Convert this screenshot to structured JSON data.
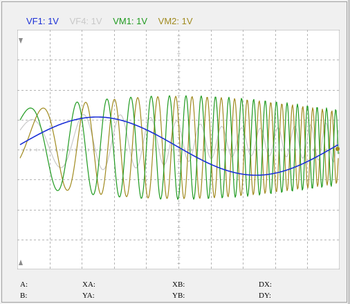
{
  "channels": [
    {
      "label": "VF1: 1V",
      "color": "#1a2fd6"
    },
    {
      "label": "VF4: 1V",
      "color": "#c8c8c8"
    },
    {
      "label": "VM1: 1V",
      "color": "#1f9a1f"
    },
    {
      "label": "VM2: 1V",
      "color": "#a08a1e"
    }
  ],
  "colors": {
    "screen_background": "#ffffff",
    "grid": "#b4b4b4",
    "trigger_marker": "#8c8c8c"
  },
  "readouts": {
    "row1": {
      "a": "A:",
      "xa": "XA:",
      "xb": "XB:",
      "dx": "DX:"
    },
    "row2": {
      "b": "B:",
      "ya": "YA:",
      "yb": "YB:",
      "dy": "DY:"
    }
  }
}
